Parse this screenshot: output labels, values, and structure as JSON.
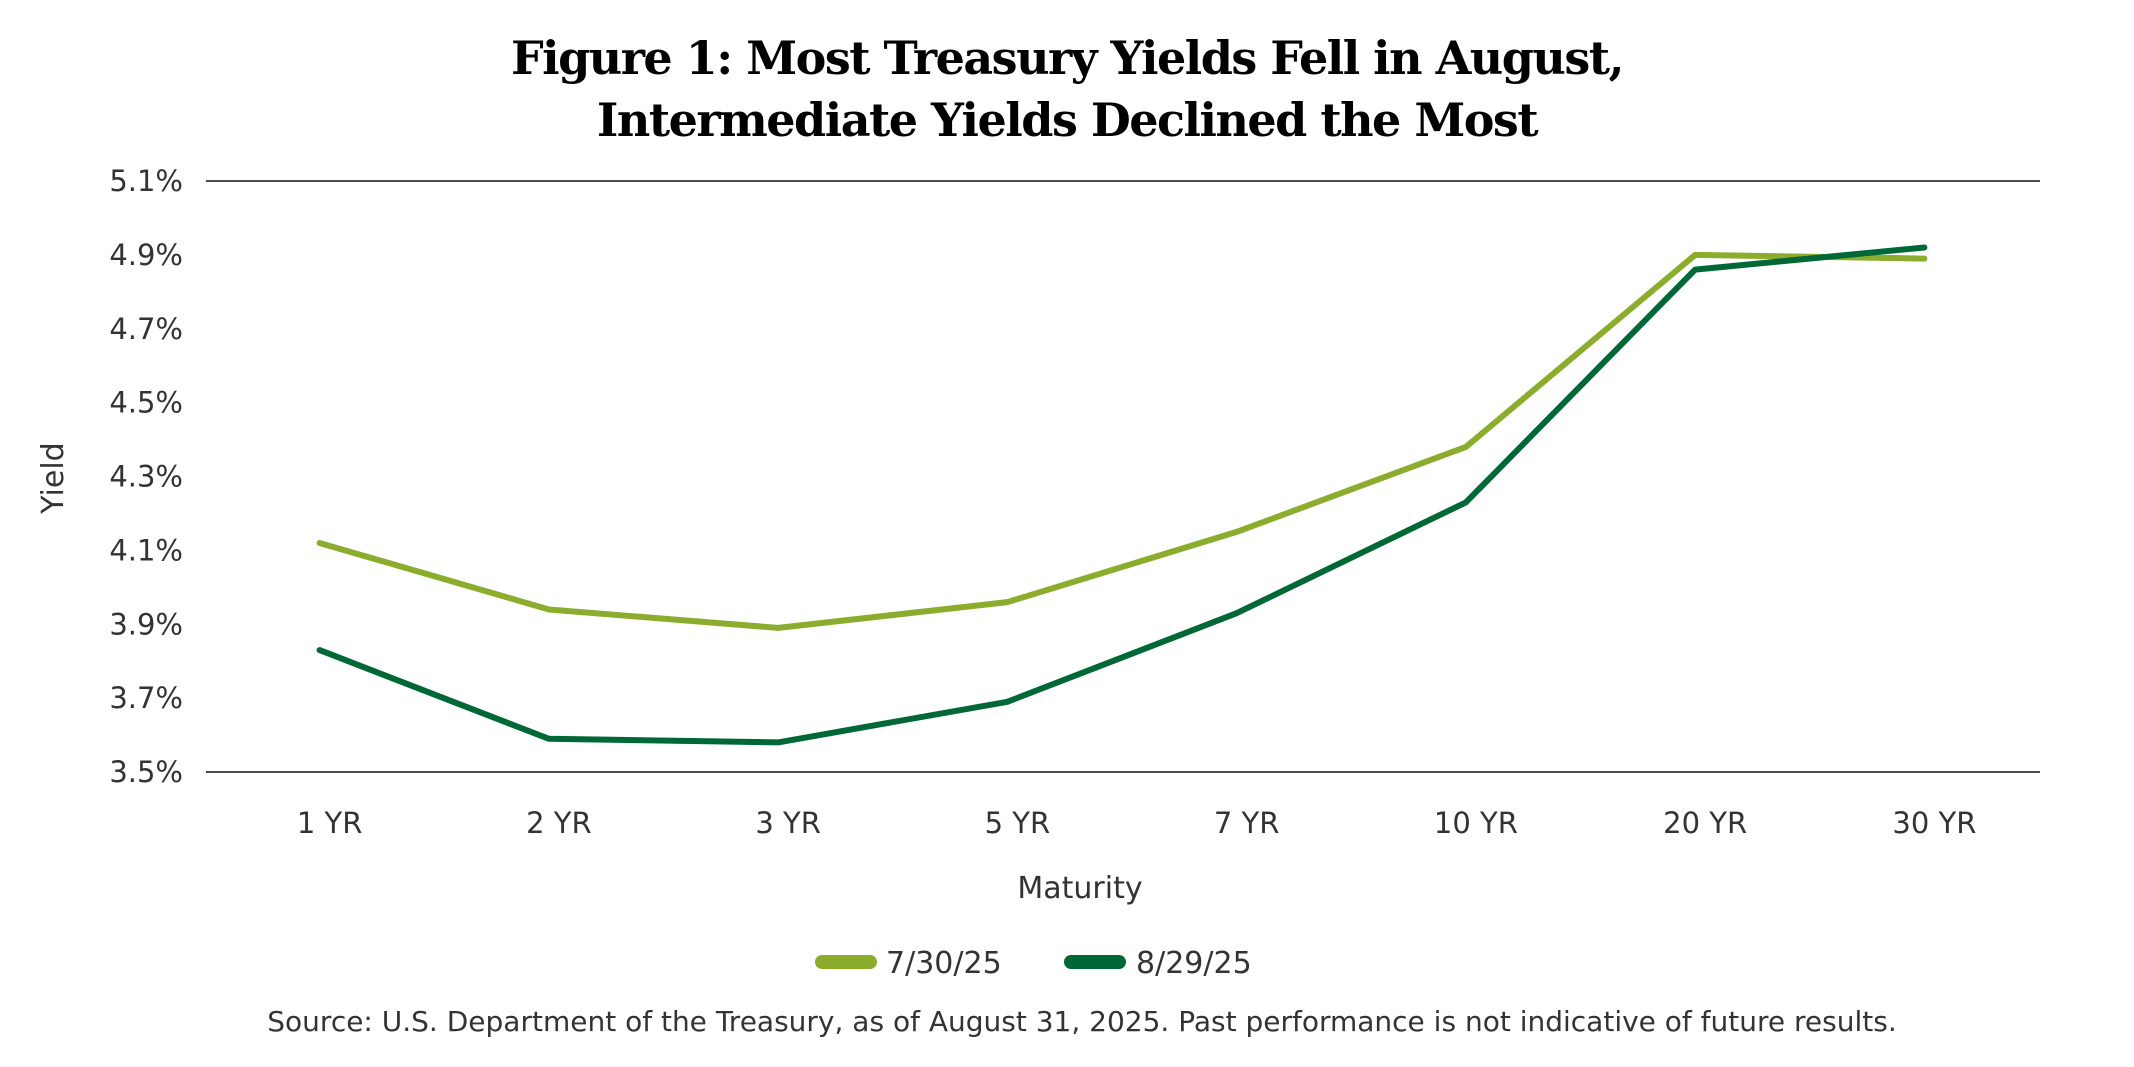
{
  "chart_data": {
    "type": "line",
    "title": "Figure 1: Most Treasury Yields Fell in August,",
    "subtitle": "Intermediate Yields Declined the Most",
    "xlabel": "Maturity",
    "ylabel": "Yield",
    "categories": [
      "1 YR",
      "2 YR",
      "3 YR",
      "5 YR",
      "7 YR",
      "10 YR",
      "20 YR",
      "30 YR"
    ],
    "ylim": [
      3.5,
      5.1
    ],
    "yticks": [
      5.1,
      4.9,
      4.7,
      4.5,
      4.3,
      4.1,
      3.9,
      3.7,
      3.5
    ],
    "ytick_labels": [
      "5.1%",
      "4.9%",
      "4.7%",
      "4.5%",
      "4.3%",
      "4.1%",
      "3.9%",
      "3.7%",
      "3.5%"
    ],
    "grid": "top and bottom lines only",
    "legend_position": "bottom-center",
    "series": [
      {
        "name": "7/30/25",
        "color": "#8bac2d",
        "values": [
          4.12,
          3.94,
          3.89,
          3.96,
          4.15,
          4.38,
          4.9,
          4.89
        ]
      },
      {
        "name": "8/29/25",
        "color": "#006837",
        "values": [
          3.83,
          3.59,
          3.58,
          3.69,
          3.93,
          4.23,
          4.86,
          4.92
        ]
      }
    ],
    "source": "Source: U.S. Department of the Treasury, as of August 31, 2025. Past performance is not indicative of future results."
  }
}
